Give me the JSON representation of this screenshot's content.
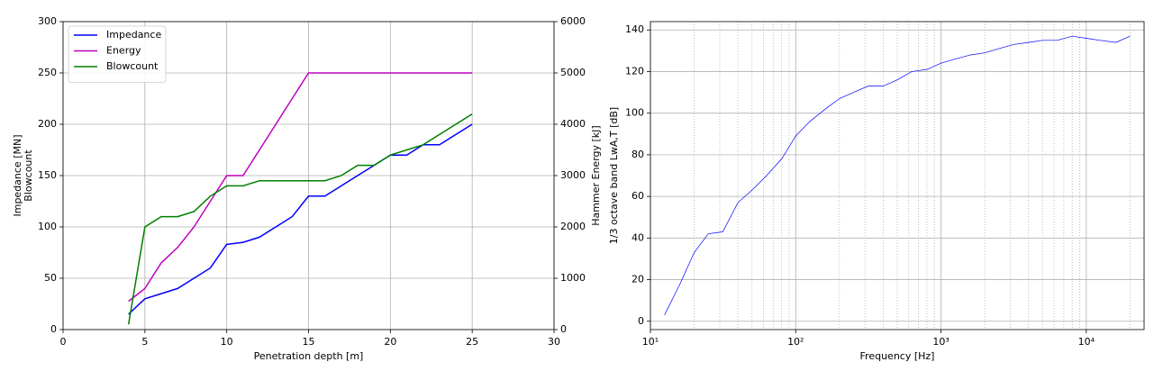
{
  "chart_data": [
    {
      "type": "line",
      "x": [
        4,
        5,
        6,
        7,
        8,
        9,
        10,
        11,
        12,
        13,
        14,
        15,
        16,
        17,
        18,
        19,
        20,
        21,
        22,
        23,
        24,
        25
      ],
      "series": [
        {
          "name": "Impedance",
          "color": "#0000ff",
          "values": [
            15,
            30,
            35,
            40,
            50,
            60,
            83,
            85,
            90,
            100,
            110,
            130,
            130,
            140,
            150,
            160,
            170,
            170,
            180,
            180,
            190,
            200
          ]
        },
        {
          "name": "Energy",
          "color": "#bf00bf",
          "axis": "y2",
          "values": [
            550,
            800,
            1300,
            1600,
            2000,
            2500,
            3000,
            3000,
            3500,
            4000,
            4500,
            5000,
            5000,
            5000,
            5000,
            5000,
            5000,
            5000,
            5000,
            5000,
            5000,
            5000
          ]
        },
        {
          "name": "Blowcount",
          "color": "#007f00",
          "values": [
            5,
            100,
            110,
            110,
            115,
            130,
            140,
            140,
            145,
            145,
            145,
            145,
            145,
            150,
            160,
            160,
            170,
            175,
            180,
            190,
            200,
            210
          ]
        }
      ],
      "xlabel": "Penetration depth [m]",
      "ylabel": [
        "Impedance [MN]",
        "Blowcount"
      ],
      "y2label": "Hammer Energy [kJ]",
      "xlim": [
        0,
        30
      ],
      "xticks": [
        0,
        5,
        10,
        15,
        20,
        25,
        30
      ],
      "ylim": [
        0,
        300
      ],
      "yticks": [
        0,
        50,
        100,
        150,
        200,
        250,
        300
      ],
      "y2lim": [
        0,
        6000
      ],
      "y2ticks": [
        0,
        1000,
        2000,
        3000,
        4000,
        5000,
        6000
      ],
      "grid": true,
      "legend": "upper left"
    },
    {
      "type": "line",
      "xscale": "log",
      "x": [
        12.5,
        16,
        20,
        25,
        31.5,
        40,
        50,
        63,
        80,
        100,
        125,
        160,
        200,
        250,
        315,
        400,
        500,
        630,
        800,
        1000,
        1250,
        1600,
        2000,
        2500,
        3150,
        4000,
        5000,
        6300,
        8000,
        10000,
        12500,
        16000,
        20000
      ],
      "series": [
        {
          "name": "LwA,T",
          "color": "#0000ff",
          "values": [
            3,
            18,
            33,
            42,
            43,
            57,
            63,
            70,
            78,
            89,
            96,
            102,
            107,
            110,
            113,
            113,
            116,
            120,
            121,
            124,
            126,
            128,
            129,
            131,
            133,
            134,
            135,
            135,
            137,
            136,
            135,
            134,
            137
          ]
        }
      ],
      "xlabel": "Frequency [Hz]",
      "ylabel": [
        "1/3 octave band LwA,T [dB]"
      ],
      "xlim": [
        10,
        25000
      ],
      "xticks": [
        {
          "value": 10,
          "label": "10¹"
        },
        {
          "value": 100,
          "label": "10²"
        },
        {
          "value": 1000,
          "label": "10³"
        },
        {
          "value": 10000,
          "label": "10⁴"
        }
      ],
      "xminorticks": [
        20,
        30,
        40,
        50,
        60,
        70,
        80,
        90,
        200,
        300,
        400,
        500,
        600,
        700,
        800,
        900,
        2000,
        3000,
        4000,
        5000,
        6000,
        7000,
        8000,
        9000,
        20000
      ],
      "ylim": [
        -4,
        144
      ],
      "yticks": [
        0,
        20,
        40,
        60,
        80,
        100,
        120,
        140
      ],
      "grid": true
    }
  ]
}
